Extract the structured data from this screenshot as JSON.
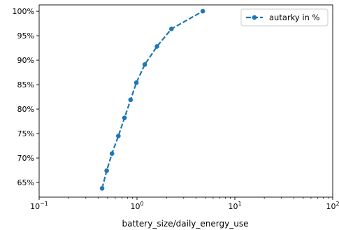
{
  "chart_data": {
    "type": "line",
    "title": "",
    "xlabel": "battery_size/daily_energy_use",
    "ylabel": "",
    "x_scale": "log",
    "xlim": [
      0.1,
      100
    ],
    "ylim": [
      62.0,
      101.3
    ],
    "x_ticks": [
      {
        "value": 0.1,
        "base": "10",
        "exp": "−1"
      },
      {
        "value": 1,
        "base": "10",
        "exp": "0"
      },
      {
        "value": 10,
        "base": "10",
        "exp": "1"
      },
      {
        "value": 100,
        "base": "10",
        "exp": "2"
      }
    ],
    "y_ticks": [
      {
        "value": 65,
        "label": "65%"
      },
      {
        "value": 70,
        "label": "70%"
      },
      {
        "value": 75,
        "label": "75%"
      },
      {
        "value": 80,
        "label": "80%"
      },
      {
        "value": 85,
        "label": "85%"
      },
      {
        "value": 90,
        "label": "90%"
      },
      {
        "value": 95,
        "label": "95%"
      },
      {
        "value": 100,
        "label": "100%"
      }
    ],
    "grid": false,
    "legend_position": "top-right",
    "series": [
      {
        "name": "autarky in %",
        "color": "#1f77b4",
        "line_style": "dashed",
        "marker": "circle",
        "points": [
          {
            "x": 0.44,
            "y": 63.8
          },
          {
            "x": 0.49,
            "y": 67.4
          },
          {
            "x": 0.555,
            "y": 70.9
          },
          {
            "x": 0.645,
            "y": 74.5
          },
          {
            "x": 0.745,
            "y": 78.2
          },
          {
            "x": 0.86,
            "y": 81.9
          },
          {
            "x": 0.985,
            "y": 85.4
          },
          {
            "x": 1.2,
            "y": 89.1
          },
          {
            "x": 1.6,
            "y": 92.8
          },
          {
            "x": 2.25,
            "y": 96.4
          },
          {
            "x": 4.7,
            "y": 100.0
          }
        ]
      }
    ]
  }
}
